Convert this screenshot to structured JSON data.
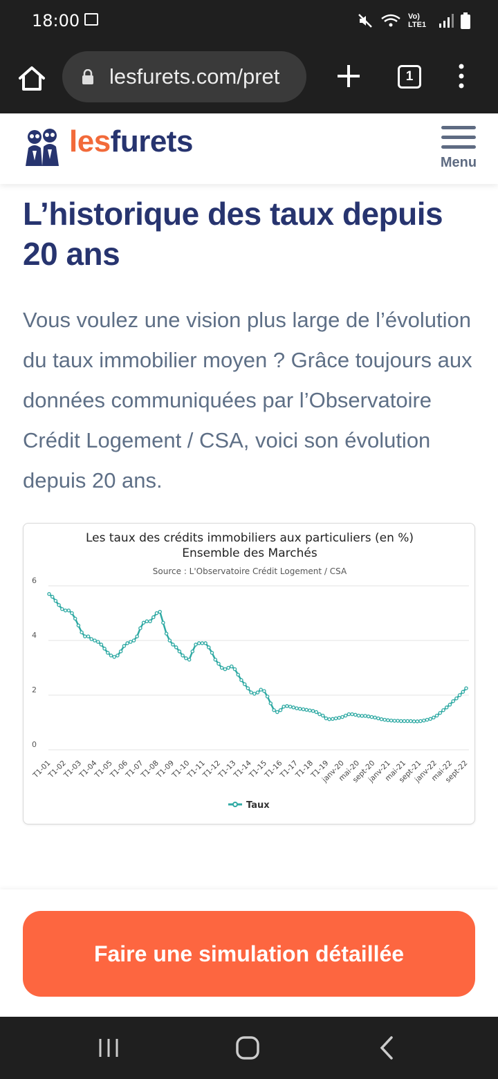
{
  "status_bar": {
    "time": "18:00",
    "network_label": "Vo) LTE1"
  },
  "browser": {
    "url": "lesfurets.com/pret"
  },
  "header": {
    "logo_part1": "les",
    "logo_part2": "furets",
    "menu_label": "Menu"
  },
  "main": {
    "title": "L’historique des taux depuis 20 ans",
    "intro": "Vous voulez une vision plus large de l’évolution du taux immobilier moyen ? Grâce toujours aux données communiquées par l’Observatoire Crédit Logement / CSA, voici son évolution depuis 20 ans."
  },
  "cta": {
    "label": "Faire une simulation détaillée"
  },
  "colors": {
    "brand_navy": "#27346f",
    "brand_orange": "#f26a3a",
    "cta_orange": "#fd6640",
    "series": "#30aaa4"
  },
  "chart_data": {
    "type": "line",
    "title": "Les taux des crédits immobiliers aux particuliers (en %)",
    "subtitle": "Ensemble des Marchés",
    "source": "Source : L'Observatoire Crédit Logement / CSA",
    "ylim": [
      0,
      6
    ],
    "yticks": [
      "0",
      "2",
      "4",
      "6"
    ],
    "xticks": [
      "T1-01",
      "T1-02",
      "T1-03",
      "T1-04",
      "T1-05",
      "T1-06",
      "T1-07",
      "T1-08",
      "T1-09",
      "T1-10",
      "T1-11",
      "T1-12",
      "T1-13",
      "T1-14",
      "T1-15",
      "T1-16",
      "T1-17",
      "T1-18",
      "T1-19",
      "janv-20",
      "mai-20",
      "sept-20",
      "janv-21",
      "mai-21",
      "sept-21",
      "janv-22",
      "mai-22",
      "sept-22"
    ],
    "grid": true,
    "legend_position": "bottom",
    "series": [
      {
        "name": "Taux",
        "values": [
          5.7,
          5.6,
          5.45,
          5.3,
          5.15,
          5.1,
          5.1,
          5.0,
          4.8,
          4.55,
          4.3,
          4.15,
          4.15,
          4.05,
          4.0,
          3.95,
          3.85,
          3.7,
          3.55,
          3.45,
          3.4,
          3.45,
          3.6,
          3.8,
          3.9,
          3.95,
          4.0,
          4.15,
          4.45,
          4.65,
          4.7,
          4.7,
          4.85,
          5.0,
          5.05,
          4.65,
          4.25,
          4.0,
          3.85,
          3.75,
          3.6,
          3.45,
          3.35,
          3.3,
          3.6,
          3.85,
          3.9,
          3.9,
          3.9,
          3.75,
          3.55,
          3.3,
          3.15,
          3.0,
          2.95,
          3.0,
          3.05,
          2.95,
          2.75,
          2.55,
          2.4,
          2.25,
          2.1,
          2.05,
          2.1,
          2.2,
          2.15,
          1.95,
          1.7,
          1.45,
          1.38,
          1.45,
          1.58,
          1.6,
          1.58,
          1.55,
          1.52,
          1.5,
          1.48,
          1.46,
          1.44,
          1.42,
          1.38,
          1.3,
          1.25,
          1.15,
          1.12,
          1.13,
          1.15,
          1.17,
          1.2,
          1.25,
          1.3,
          1.3,
          1.28,
          1.25,
          1.24,
          1.24,
          1.22,
          1.2,
          1.18,
          1.15,
          1.12,
          1.1,
          1.08,
          1.07,
          1.06,
          1.06,
          1.05,
          1.05,
          1.05,
          1.05,
          1.04,
          1.04,
          1.05,
          1.07,
          1.1,
          1.13,
          1.18,
          1.25,
          1.35,
          1.45,
          1.55,
          1.65,
          1.78,
          1.88,
          2.0,
          2.12,
          2.25
        ]
      }
    ]
  }
}
